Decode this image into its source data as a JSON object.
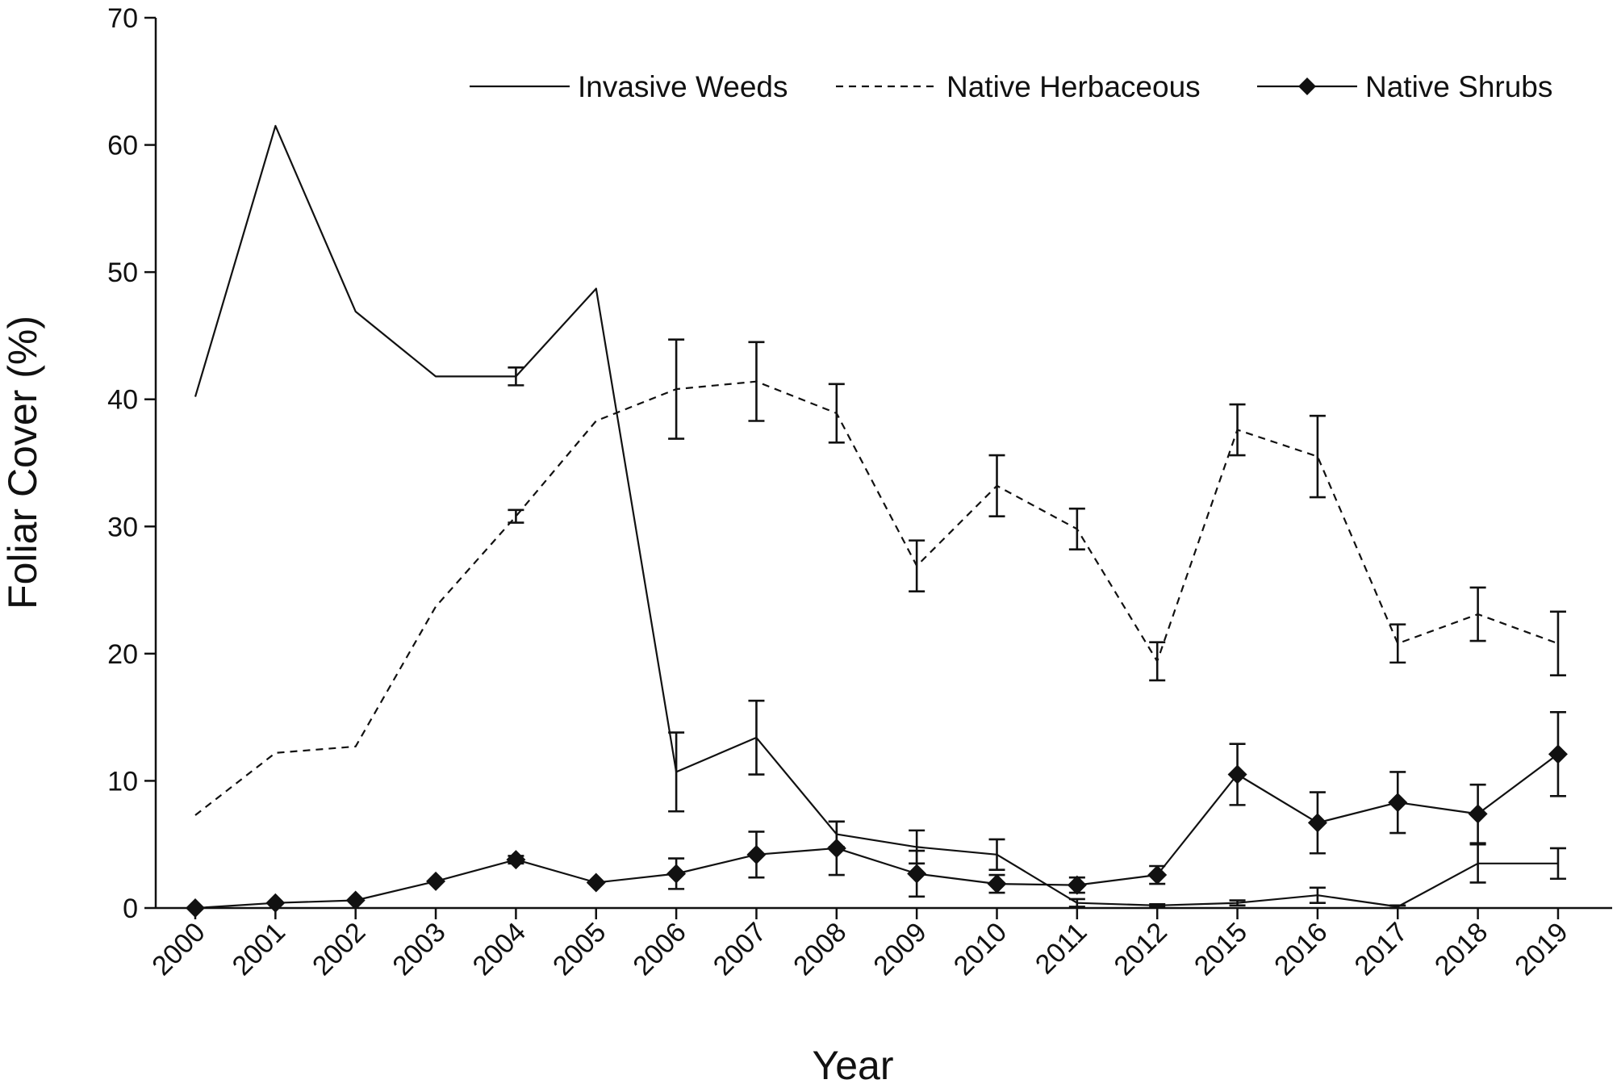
{
  "chart_data": {
    "type": "line",
    "title": "",
    "xlabel": "Year",
    "ylabel": "Foliar Cover (%)",
    "ylim": [
      0,
      70
    ],
    "yticks": [
      0,
      10,
      20,
      30,
      40,
      50,
      60,
      70
    ],
    "categories": [
      "2000",
      "2001",
      "2002",
      "2003",
      "2004",
      "2005",
      "2006",
      "2007",
      "2008",
      "2009",
      "2010",
      "2011",
      "2012",
      "2015",
      "2016",
      "2017",
      "2018",
      "2019"
    ],
    "grid": false,
    "legend_position": "top-right",
    "series": [
      {
        "name": "Invasive Weeds",
        "style": "solid",
        "marker": "none",
        "color": "#111111",
        "values": [
          40.2,
          61.5,
          46.9,
          41.8,
          41.8,
          48.7,
          10.7,
          13.4,
          5.8,
          4.8,
          4.2,
          0.4,
          0.2,
          0.4,
          1.0,
          0.1,
          3.5,
          3.5
        ],
        "errors": [
          null,
          null,
          null,
          null,
          0.7,
          null,
          3.1,
          2.9,
          1.0,
          1.3,
          1.2,
          0.3,
          0.1,
          0.2,
          0.6,
          0.1,
          1.5,
          1.2
        ]
      },
      {
        "name": "Native Herbaceous",
        "style": "dashed",
        "marker": "none",
        "color": "#111111",
        "values": [
          7.3,
          12.2,
          12.7,
          23.7,
          30.8,
          38.3,
          40.8,
          41.4,
          38.9,
          26.9,
          33.2,
          29.8,
          19.4,
          37.6,
          35.5,
          20.8,
          23.1,
          20.8
        ],
        "errors": [
          null,
          null,
          null,
          null,
          0.5,
          null,
          3.9,
          3.1,
          2.3,
          2.0,
          2.4,
          1.6,
          1.5,
          2.0,
          3.2,
          1.5,
          2.1,
          2.5
        ]
      },
      {
        "name": "Native Shrubs",
        "style": "solid",
        "marker": "diamond",
        "color": "#111111",
        "values": [
          0.0,
          0.4,
          0.6,
          2.1,
          3.8,
          2.0,
          2.7,
          4.2,
          4.7,
          2.7,
          1.9,
          1.8,
          2.6,
          10.5,
          6.7,
          8.3,
          7.4,
          12.1
        ],
        "errors": [
          null,
          null,
          null,
          null,
          0.3,
          null,
          1.2,
          1.8,
          2.1,
          1.8,
          0.7,
          0.6,
          0.7,
          2.4,
          2.4,
          2.4,
          2.3,
          3.3
        ]
      }
    ]
  }
}
